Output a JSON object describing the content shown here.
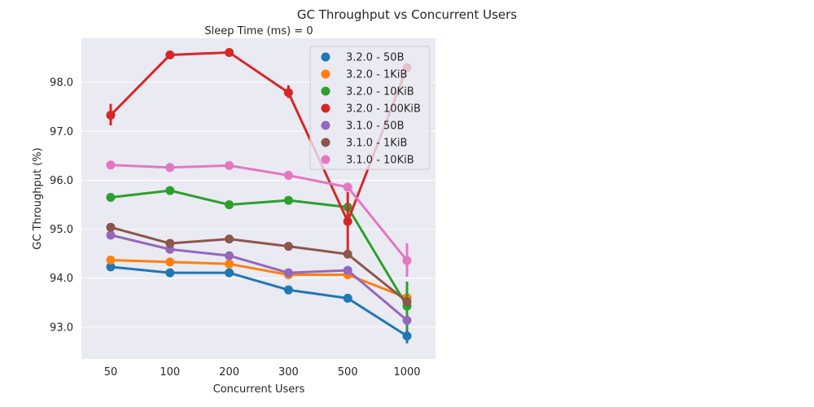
{
  "chart_data": {
    "type": "line",
    "title": "GC Throughput vs Concurrent Users",
    "subtitle": "Sleep Time (ms) = 0",
    "xlabel": "Concurrent Users",
    "ylabel": "GC Throughput (%)",
    "categories": [
      "50",
      "100",
      "200",
      "300",
      "500",
      "1000"
    ],
    "ylim": [
      92.35,
      98.9
    ],
    "yticks": [
      "93.0",
      "94.0",
      "95.0",
      "96.0",
      "97.0",
      "98.0"
    ],
    "grid": true,
    "legend_position": "top-right",
    "series": [
      {
        "name": "3.2.0 - 50B",
        "color": "#1f77b4",
        "values": [
          94.23,
          94.11,
          94.11,
          93.76,
          93.59,
          92.82
        ],
        "errors": [
          [
            94.23,
            94.23
          ],
          [
            94.11,
            94.11
          ],
          [
            94.11,
            94.11
          ],
          [
            93.76,
            93.76
          ],
          [
            93.59,
            93.59
          ],
          [
            92.67,
            92.97
          ]
        ]
      },
      {
        "name": "3.2.0 - 1KiB",
        "color": "#ff7f0e",
        "values": [
          94.37,
          94.33,
          94.29,
          94.07,
          94.07,
          93.6
        ],
        "errors": [
          [
            94.37,
            94.37
          ],
          [
            94.33,
            94.33
          ],
          [
            94.29,
            94.29
          ],
          [
            94.07,
            94.07
          ],
          [
            94.07,
            94.07
          ],
          [
            93.6,
            93.6
          ]
        ]
      },
      {
        "name": "3.2.0 - 10KiB",
        "color": "#2ca02c",
        "values": [
          95.65,
          95.79,
          95.5,
          95.59,
          95.45,
          93.43
        ],
        "errors": [
          [
            95.65,
            95.65
          ],
          [
            95.79,
            95.79
          ],
          [
            95.5,
            95.5
          ],
          [
            95.59,
            95.59
          ],
          [
            95.45,
            95.45
          ],
          [
            92.95,
            93.93
          ]
        ]
      },
      {
        "name": "3.2.0 - 100KiB",
        "color": "#d62728",
        "values": [
          97.33,
          98.56,
          98.61,
          97.79,
          95.16,
          98.3
        ],
        "errors": [
          [
            97.12,
            97.56
          ],
          [
            98.56,
            98.56
          ],
          [
            98.61,
            98.61
          ],
          [
            97.68,
            97.94
          ],
          [
            94.52,
            95.76
          ],
          [
            98.3,
            98.3
          ]
        ]
      },
      {
        "name": "3.1.0 - 50B",
        "color": "#9467bd",
        "values": [
          94.88,
          94.59,
          94.46,
          94.11,
          94.16,
          93.14
        ],
        "errors": [
          [
            94.88,
            94.88
          ],
          [
            94.59,
            94.59
          ],
          [
            94.46,
            94.46
          ],
          [
            94.11,
            94.11
          ],
          [
            94.16,
            94.16
          ],
          [
            93.14,
            93.14
          ]
        ]
      },
      {
        "name": "3.1.0 - 1KiB",
        "color": "#8c564b",
        "values": [
          95.04,
          94.71,
          94.8,
          94.65,
          94.49,
          93.52
        ],
        "errors": [
          [
            95.04,
            95.04
          ],
          [
            94.71,
            94.71
          ],
          [
            94.8,
            94.8
          ],
          [
            94.65,
            94.65
          ],
          [
            94.49,
            94.49
          ],
          [
            93.52,
            93.52
          ]
        ]
      },
      {
        "name": "3.1.0 - 10KiB",
        "color": "#e377c2",
        "values": [
          96.31,
          96.26,
          96.3,
          96.1,
          95.86,
          94.36
        ],
        "errors": [
          [
            96.31,
            96.31
          ],
          [
            96.26,
            96.26
          ],
          [
            96.3,
            96.3
          ],
          [
            96.1,
            96.1
          ],
          [
            95.86,
            95.86
          ],
          [
            94.03,
            94.71
          ]
        ]
      }
    ]
  }
}
